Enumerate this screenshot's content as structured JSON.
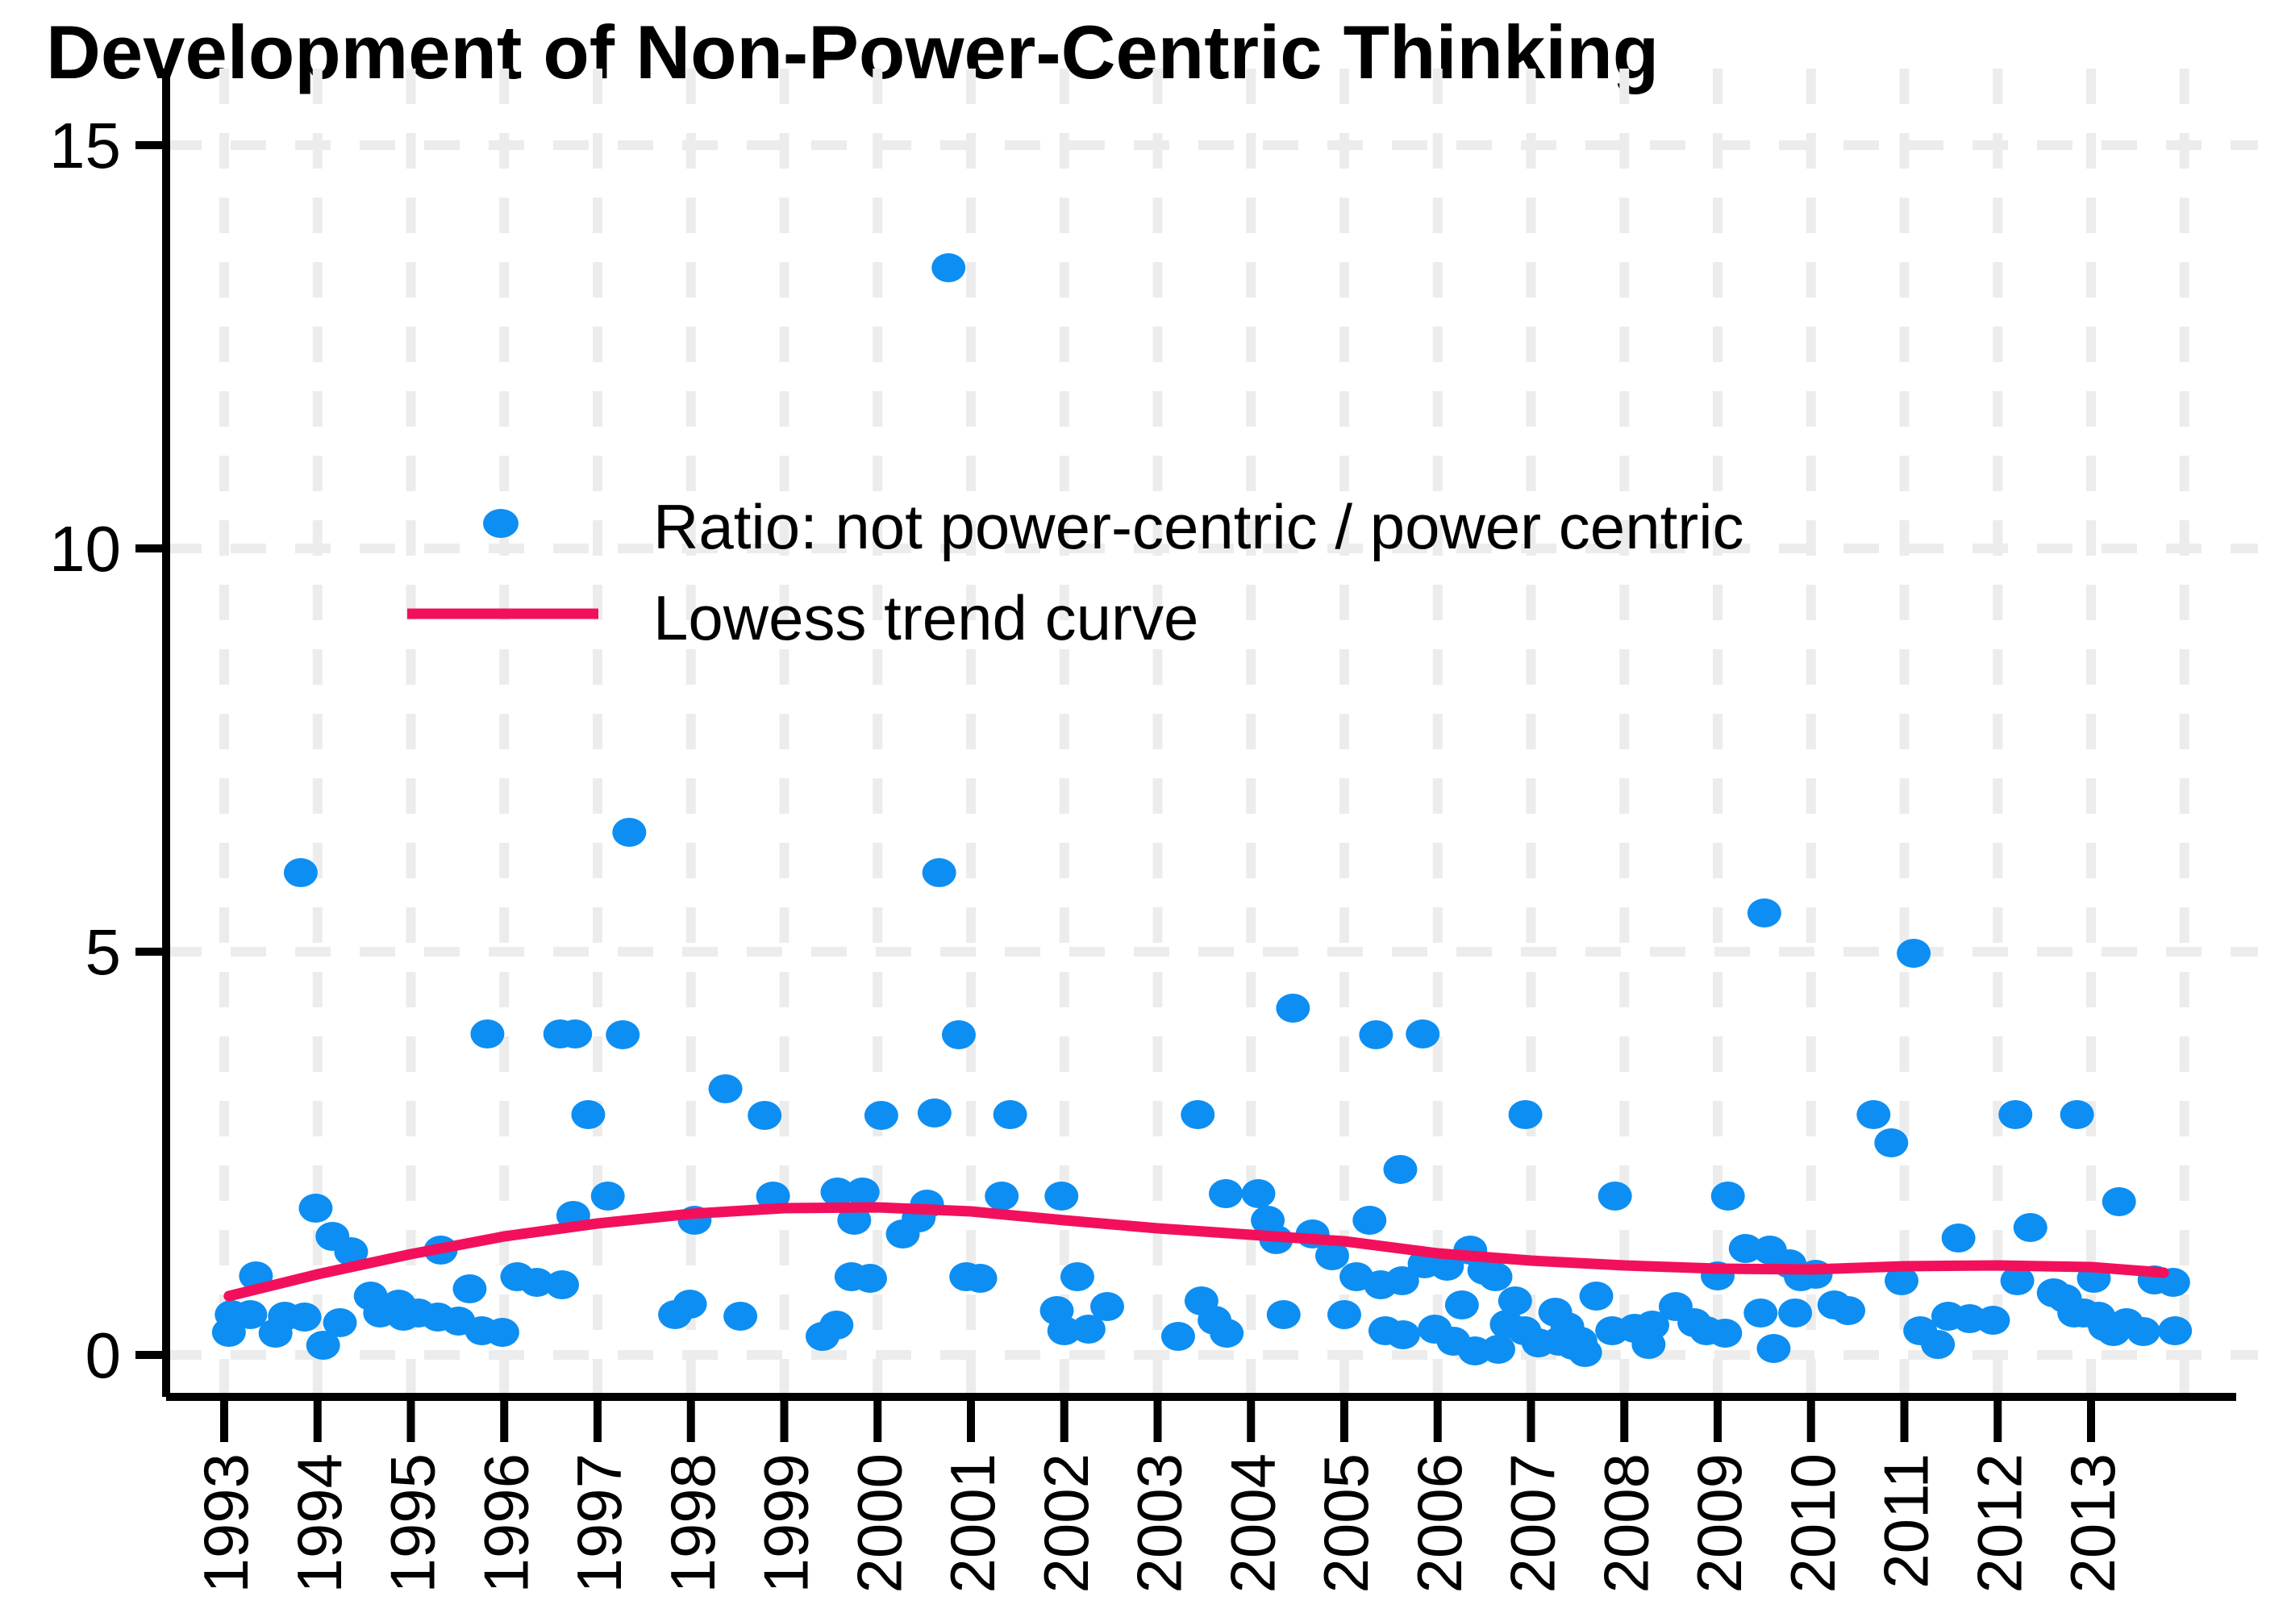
{
  "chart_data": {
    "type": "scatter",
    "title": "Development of Non-Power-Centric Thinking",
    "xlabel": "",
    "ylabel": "",
    "x_axis": {
      "tick_years": [
        1993,
        1994,
        1995,
        1996,
        1997,
        1998,
        1999,
        2000,
        2001,
        2002,
        2003,
        2004,
        2005,
        2006,
        2007,
        2008,
        2009,
        2010,
        2011,
        2012,
        2013
      ],
      "grid_extra_years": [
        2014
      ],
      "xlim": [
        1992.4,
        2014.6
      ]
    },
    "y_axis": {
      "ticks": [
        15,
        10,
        5,
        0
      ],
      "tick_labels": [
        "15",
        "10",
        "5",
        "0"
      ],
      "ylim": [
        -0.5,
        15.9
      ],
      "grid": true
    },
    "colors": {
      "point": "#0d8ef2",
      "lowess": "#f2105c",
      "grid": "#ececec",
      "axis": "#000000"
    },
    "legend": [
      {
        "label": "Ratio: not power-centric / power centric",
        "marker": "dot",
        "color": "#0d8ef2"
      },
      {
        "label": "Lowess trend curve",
        "marker": "line",
        "color": "#f2105c"
      }
    ],
    "series": [
      {
        "name": "Ratio: not power-centric / power centric",
        "points": [
          [
            1993.05,
            0.28
          ],
          [
            1993.08,
            0.5
          ],
          [
            1993.28,
            0.5
          ],
          [
            1993.34,
            0.98
          ],
          [
            1993.55,
            0.27
          ],
          [
            1993.65,
            0.48
          ],
          [
            1993.82,
            5.98
          ],
          [
            1993.86,
            0.47
          ],
          [
            1993.98,
            1.82
          ],
          [
            1994.06,
            0.12
          ],
          [
            1994.16,
            1.47
          ],
          [
            1994.24,
            0.4
          ],
          [
            1994.36,
            1.28
          ],
          [
            1994.57,
            0.73
          ],
          [
            1994.67,
            0.52
          ],
          [
            1994.87,
            0.63
          ],
          [
            1994.92,
            0.48
          ],
          [
            1995.08,
            0.52
          ],
          [
            1995.29,
            0.47
          ],
          [
            1995.32,
            1.3
          ],
          [
            1995.51,
            0.42
          ],
          [
            1995.63,
            0.82
          ],
          [
            1995.76,
            0.3
          ],
          [
            1995.82,
            3.98
          ],
          [
            1995.98,
            0.28
          ],
          [
            1996.14,
            0.97
          ],
          [
            1996.35,
            0.9
          ],
          [
            1996.6,
            3.98
          ],
          [
            1996.62,
            0.87
          ],
          [
            1996.74,
            1.73
          ],
          [
            1996.76,
            3.98
          ],
          [
            1996.9,
            2.98
          ],
          [
            1997.11,
            1.97
          ],
          [
            1997.27,
            3.97
          ],
          [
            1997.34,
            6.48
          ],
          [
            1997.83,
            0.5
          ],
          [
            1997.99,
            0.63
          ],
          [
            1998.04,
            1.67
          ],
          [
            1998.37,
            3.3
          ],
          [
            1998.53,
            0.48
          ],
          [
            1998.79,
            2.97
          ],
          [
            1998.88,
            1.97
          ],
          [
            1999.41,
            0.23
          ],
          [
            1999.56,
            0.37
          ],
          [
            1999.57,
            2.02
          ],
          [
            1999.72,
            0.97
          ],
          [
            1999.75,
            1.67
          ],
          [
            1999.84,
            2.02
          ],
          [
            1999.92,
            0.95
          ],
          [
            2000.04,
            2.97
          ],
          [
            2000.27,
            1.5
          ],
          [
            2000.44,
            1.7
          ],
          [
            2000.53,
            1.87
          ],
          [
            2000.61,
            3.0
          ],
          [
            2000.66,
            5.98
          ],
          [
            2000.76,
            13.48
          ],
          [
            2000.87,
            3.97
          ],
          [
            2000.95,
            0.97
          ],
          [
            2001.1,
            0.95
          ],
          [
            2001.33,
            1.97
          ],
          [
            2001.42,
            2.98
          ],
          [
            2001.92,
            0.55
          ],
          [
            2001.97,
            1.97
          ],
          [
            2002.0,
            0.3
          ],
          [
            2002.14,
            0.97
          ],
          [
            2002.26,
            0.32
          ],
          [
            2002.46,
            0.6
          ],
          [
            2003.22,
            0.23
          ],
          [
            2003.43,
            2.98
          ],
          [
            2003.47,
            0.67
          ],
          [
            2003.61,
            0.43
          ],
          [
            2003.73,
            2.0
          ],
          [
            2003.74,
            0.27
          ],
          [
            2004.08,
            2.0
          ],
          [
            2004.18,
            1.67
          ],
          [
            2004.27,
            1.43
          ],
          [
            2004.35,
            0.5
          ],
          [
            2004.45,
            4.3
          ],
          [
            2004.66,
            1.5
          ],
          [
            2004.87,
            1.23
          ],
          [
            2005.0,
            0.5
          ],
          [
            2005.13,
            0.97
          ],
          [
            2005.27,
            1.67
          ],
          [
            2005.34,
            3.97
          ],
          [
            2005.39,
            0.87
          ],
          [
            2005.44,
            0.3
          ],
          [
            2005.6,
            2.3
          ],
          [
            2005.62,
            0.92
          ],
          [
            2005.63,
            0.25
          ],
          [
            2005.84,
            3.98
          ],
          [
            2005.86,
            1.13
          ],
          [
            2005.97,
            0.32
          ],
          [
            2006.1,
            1.1
          ],
          [
            2006.17,
            0.17
          ],
          [
            2006.26,
            0.62
          ],
          [
            2006.35,
            1.3
          ],
          [
            2006.4,
            0.05
          ],
          [
            2006.5,
            1.05
          ],
          [
            2006.62,
            0.97
          ],
          [
            2006.65,
            0.07
          ],
          [
            2006.74,
            0.38
          ],
          [
            2006.83,
            0.67
          ],
          [
            2006.93,
            0.3
          ],
          [
            2006.94,
            2.98
          ],
          [
            2007.08,
            0.15
          ],
          [
            2007.26,
            0.53
          ],
          [
            2007.3,
            0.17
          ],
          [
            2007.39,
            0.35
          ],
          [
            2007.45,
            0.12
          ],
          [
            2007.53,
            0.17
          ],
          [
            2007.58,
            0.03
          ],
          [
            2007.7,
            0.73
          ],
          [
            2007.87,
            0.3
          ],
          [
            2007.9,
            1.97
          ],
          [
            2008.11,
            0.33
          ],
          [
            2008.26,
            0.13
          ],
          [
            2008.3,
            0.37
          ],
          [
            2008.55,
            0.6
          ],
          [
            2008.75,
            0.4
          ],
          [
            2008.88,
            0.3
          ],
          [
            2009.0,
            0.98
          ],
          [
            2009.08,
            0.27
          ],
          [
            2009.11,
            1.97
          ],
          [
            2009.3,
            1.32
          ],
          [
            2009.46,
            0.52
          ],
          [
            2009.5,
            5.48
          ],
          [
            2009.56,
            1.3
          ],
          [
            2009.6,
            0.08
          ],
          [
            2009.77,
            1.13
          ],
          [
            2009.83,
            0.52
          ],
          [
            2009.89,
            0.97
          ],
          [
            2010.05,
            1.0
          ],
          [
            2010.25,
            0.62
          ],
          [
            2010.4,
            0.55
          ],
          [
            2010.67,
            2.98
          ],
          [
            2010.86,
            2.63
          ],
          [
            2010.97,
            0.92
          ],
          [
            2011.1,
            4.98
          ],
          [
            2011.17,
            0.3
          ],
          [
            2011.36,
            0.13
          ],
          [
            2011.47,
            0.48
          ],
          [
            2011.58,
            1.45
          ],
          [
            2011.7,
            0.45
          ],
          [
            2011.95,
            0.43
          ],
          [
            2012.19,
            2.98
          ],
          [
            2012.21,
            0.92
          ],
          [
            2012.35,
            1.58
          ],
          [
            2012.6,
            0.77
          ],
          [
            2012.72,
            0.7
          ],
          [
            2012.82,
            0.52
          ],
          [
            2012.85,
            2.98
          ],
          [
            2012.92,
            0.52
          ],
          [
            2013.03,
            0.95
          ],
          [
            2013.08,
            0.48
          ],
          [
            2013.15,
            0.35
          ],
          [
            2013.24,
            0.29
          ],
          [
            2013.3,
            1.9
          ],
          [
            2013.38,
            0.4
          ],
          [
            2013.56,
            0.29
          ],
          [
            2013.68,
            0.93
          ],
          [
            2013.88,
            0.9
          ],
          [
            2013.9,
            0.3
          ]
        ]
      },
      {
        "name": "Lowess trend curve",
        "points": [
          [
            1993.05,
            0.73
          ],
          [
            1994,
            1.0
          ],
          [
            1995,
            1.25
          ],
          [
            1996,
            1.47
          ],
          [
            1997,
            1.63
          ],
          [
            1998,
            1.75
          ],
          [
            1999,
            1.82
          ],
          [
            2000,
            1.83
          ],
          [
            2001,
            1.78
          ],
          [
            2002,
            1.67
          ],
          [
            2003,
            1.57
          ],
          [
            2004,
            1.49
          ],
          [
            2005,
            1.41
          ],
          [
            2006,
            1.26
          ],
          [
            2007,
            1.17
          ],
          [
            2008,
            1.11
          ],
          [
            2009,
            1.07
          ],
          [
            2010,
            1.06
          ],
          [
            2011,
            1.1
          ],
          [
            2012,
            1.11
          ],
          [
            2013,
            1.09
          ],
          [
            2013.78,
            1.02
          ]
        ]
      }
    ]
  }
}
